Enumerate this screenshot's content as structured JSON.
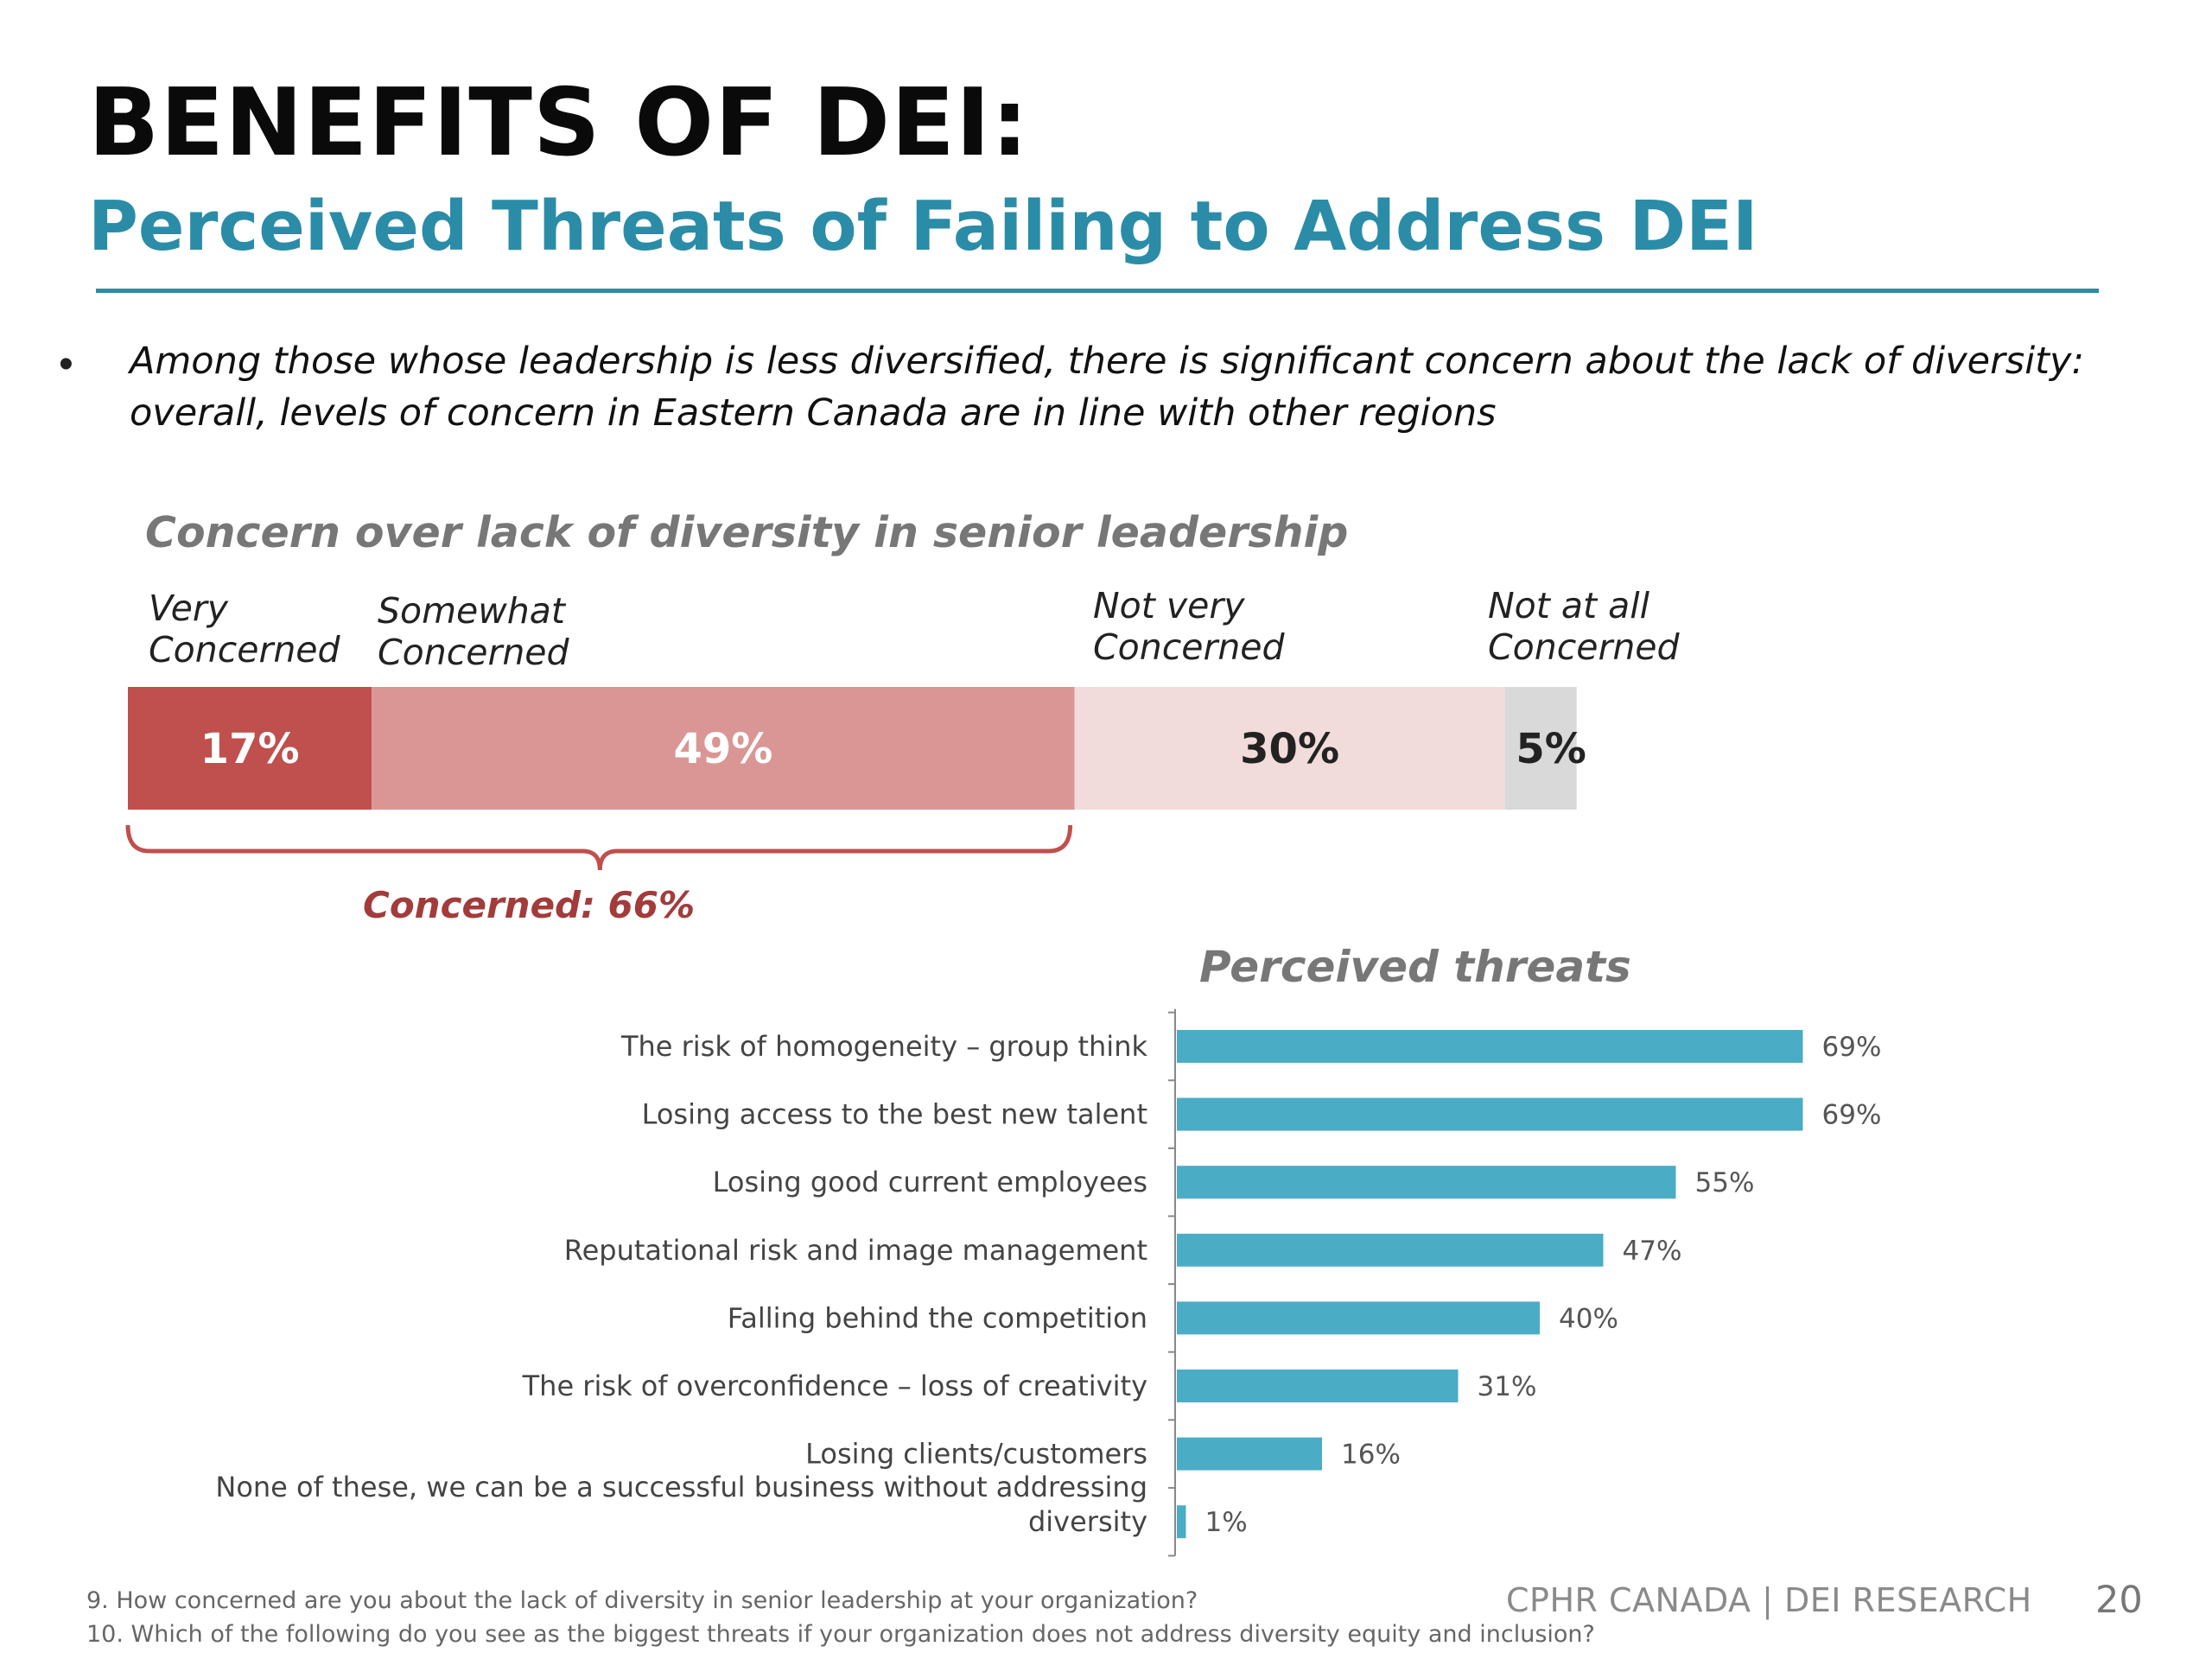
{
  "slide": {
    "title": "BENEFITS OF DEI:",
    "subtitle": "Perceived Threats of Failing to Address DEI",
    "bullet_mark": "•",
    "bullet": "Among those whose leadership is less diversified, there is significant concern about the lack of diversity: overall, levels of concern in Eastern Canada are in line with other regions",
    "footnotes": [
      "9. How concerned are you about the lack of diversity in senior leadership at your organization?",
      "10. Which of the following do you see as the biggest threats if your organization does not address diversity equity and inclusion?"
    ],
    "brand": "CPHR CANADA  |  DEI RESEARCH",
    "page_number": "20",
    "colors": {
      "title": "#0a0a0a",
      "accent": "#2b8ca8",
      "very_concerned": "#c0504d",
      "somewhat_concerned": "#d99694",
      "not_very_concerned": "#f2dcdb",
      "not_at_all_concerned": "#d9d9d9",
      "brace": "#c0504d",
      "threat_bar": "#4bacc6"
    }
  },
  "chart_data": [
    {
      "type": "bar",
      "orientation": "horizontal-stacked",
      "title": "Concern over lack of diversity in senior leadership",
      "categories": [
        "Very\nConcerned",
        "Somewhat\nConcerned",
        "Not very\nConcerned",
        "Not at all\nConcerned"
      ],
      "values": [
        17,
        49,
        30,
        5
      ],
      "value_labels": [
        "17%",
        "49%",
        "30%",
        "5%"
      ],
      "annotation": "Concerned: 66%"
    },
    {
      "type": "bar",
      "orientation": "horizontal",
      "title": "Perceived threats",
      "categories": [
        "The risk of homogeneity – group think",
        "Losing access to the best new talent",
        "Losing good current employees",
        "Reputational risk and image management",
        "Falling behind the competition",
        "The risk of overconfidence – loss of creativity",
        "Losing clients/customers",
        "None of these, we can be a successful business without addressing\ndiversity"
      ],
      "values": [
        69,
        69,
        55,
        47,
        40,
        31,
        16,
        1
      ],
      "value_labels": [
        "69%",
        "69%",
        "55%",
        "47%",
        "40%",
        "31%",
        "16%",
        "1%"
      ],
      "grid": false,
      "legend": "none"
    }
  ]
}
